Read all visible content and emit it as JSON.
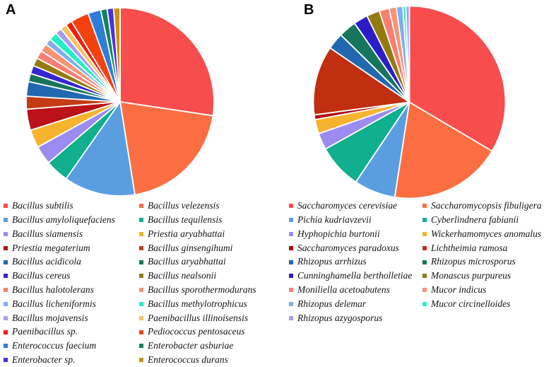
{
  "figure": {
    "background": "#ffffff"
  },
  "chart_data": [
    {
      "type": "pie",
      "title": "A",
      "direction": "clockwise",
      "start_angle_deg": 0,
      "legend_position": "bottom",
      "legend_columns": 2,
      "values_are": "estimated_percent",
      "labels": [
        "Bacillus subtilis",
        "Bacillus velezensis",
        "Bacillus amyloliquefaciens",
        "Bacillus tequilensis",
        "Bacillus siamensis",
        "Priestia aryabhattai",
        "Priestia megaterium",
        "Bacillus ginsengihumi",
        "Bacillus acidicola",
        "Bacillus aryabhattai",
        "Bacillus cereus",
        "Bacillus nealsonii",
        "Bacillus halotolerans",
        "Bacillus sporothermodurans",
        "Bacillus licheniformis",
        "Bacillus methylotrophicus",
        "Bacillus mojavensis",
        "Paenibacillus illinoisensis",
        "Paenibacillus sp.",
        "Pediococcus pentosaceus",
        "Enterococcus faecium",
        "Enterobacter asburiae",
        "Enterobacter sp.",
        "Enterococcus durans"
      ],
      "values": [
        27.2,
        20.0,
        12.2,
        4.0,
        3.2,
        3.1,
        3.6,
        2.2,
        2.5,
        1.4,
        1.4,
        1.4,
        1.4,
        1.4,
        1.1,
        1.4,
        1.1,
        1.1,
        1.1,
        3.1,
        2.2,
        1.1,
        1.1,
        1.1
      ],
      "colors": [
        "#F84D4D",
        "#FB6E42",
        "#5B9EE0",
        "#10AF8D",
        "#9C8CF0",
        "#F5B32E",
        "#BB1118",
        "#C33C16",
        "#2268B0",
        "#16765C",
        "#3525D2",
        "#937B12",
        "#F97E72",
        "#FA9273",
        "#7FAFE9",
        "#23EFC6",
        "#A89BF1",
        "#F6C55C",
        "#EE1C15",
        "#F4420E",
        "#2E7DD8",
        "#128260",
        "#4B30E2",
        "#C89412"
      ]
    },
    {
      "type": "pie",
      "title": "B",
      "direction": "clockwise",
      "start_angle_deg": 0,
      "legend_position": "bottom",
      "legend_columns": 2,
      "values_are": "estimated_percent",
      "labels": [
        "Saccharomyces cerevisiae",
        "Saccharomycopsis fibuligera",
        "Pichia kudriavzevii",
        "Cyberlindnera fabianii",
        "Hyphopichia burtonii",
        "Wickerhamomyces anomalus",
        "Saccharomyces paradoxus",
        "Lichtheimia ramosa",
        "Rhizopus arrhizus",
        "Rhizopus microsporus",
        "Cunninghamella bertholletiae",
        "Monascus purpureus",
        "Moniliella acetoabutens",
        "Mucor indicus",
        "Rhizopus delemar",
        "Mucor circinelloides",
        "Rhizopus azygosporus"
      ],
      "values": [
        33.6,
        19.0,
        7.0,
        7.5,
        2.8,
        2.4,
        0.8,
        11.7,
        2.8,
        3.0,
        2.4,
        2.2,
        1.7,
        1.2,
        1.1,
        0.5,
        0.6
      ],
      "colors": [
        "#F84D4D",
        "#FB6E42",
        "#5B9EE0",
        "#10AF8D",
        "#9C8CF0",
        "#F5B32E",
        "#B00A14",
        "#BF2F10",
        "#2268B0",
        "#16765C",
        "#2C1CC8",
        "#937B12",
        "#F97E72",
        "#FA9273",
        "#7FAFE9",
        "#23EFC6",
        "#A89BF1"
      ]
    }
  ]
}
